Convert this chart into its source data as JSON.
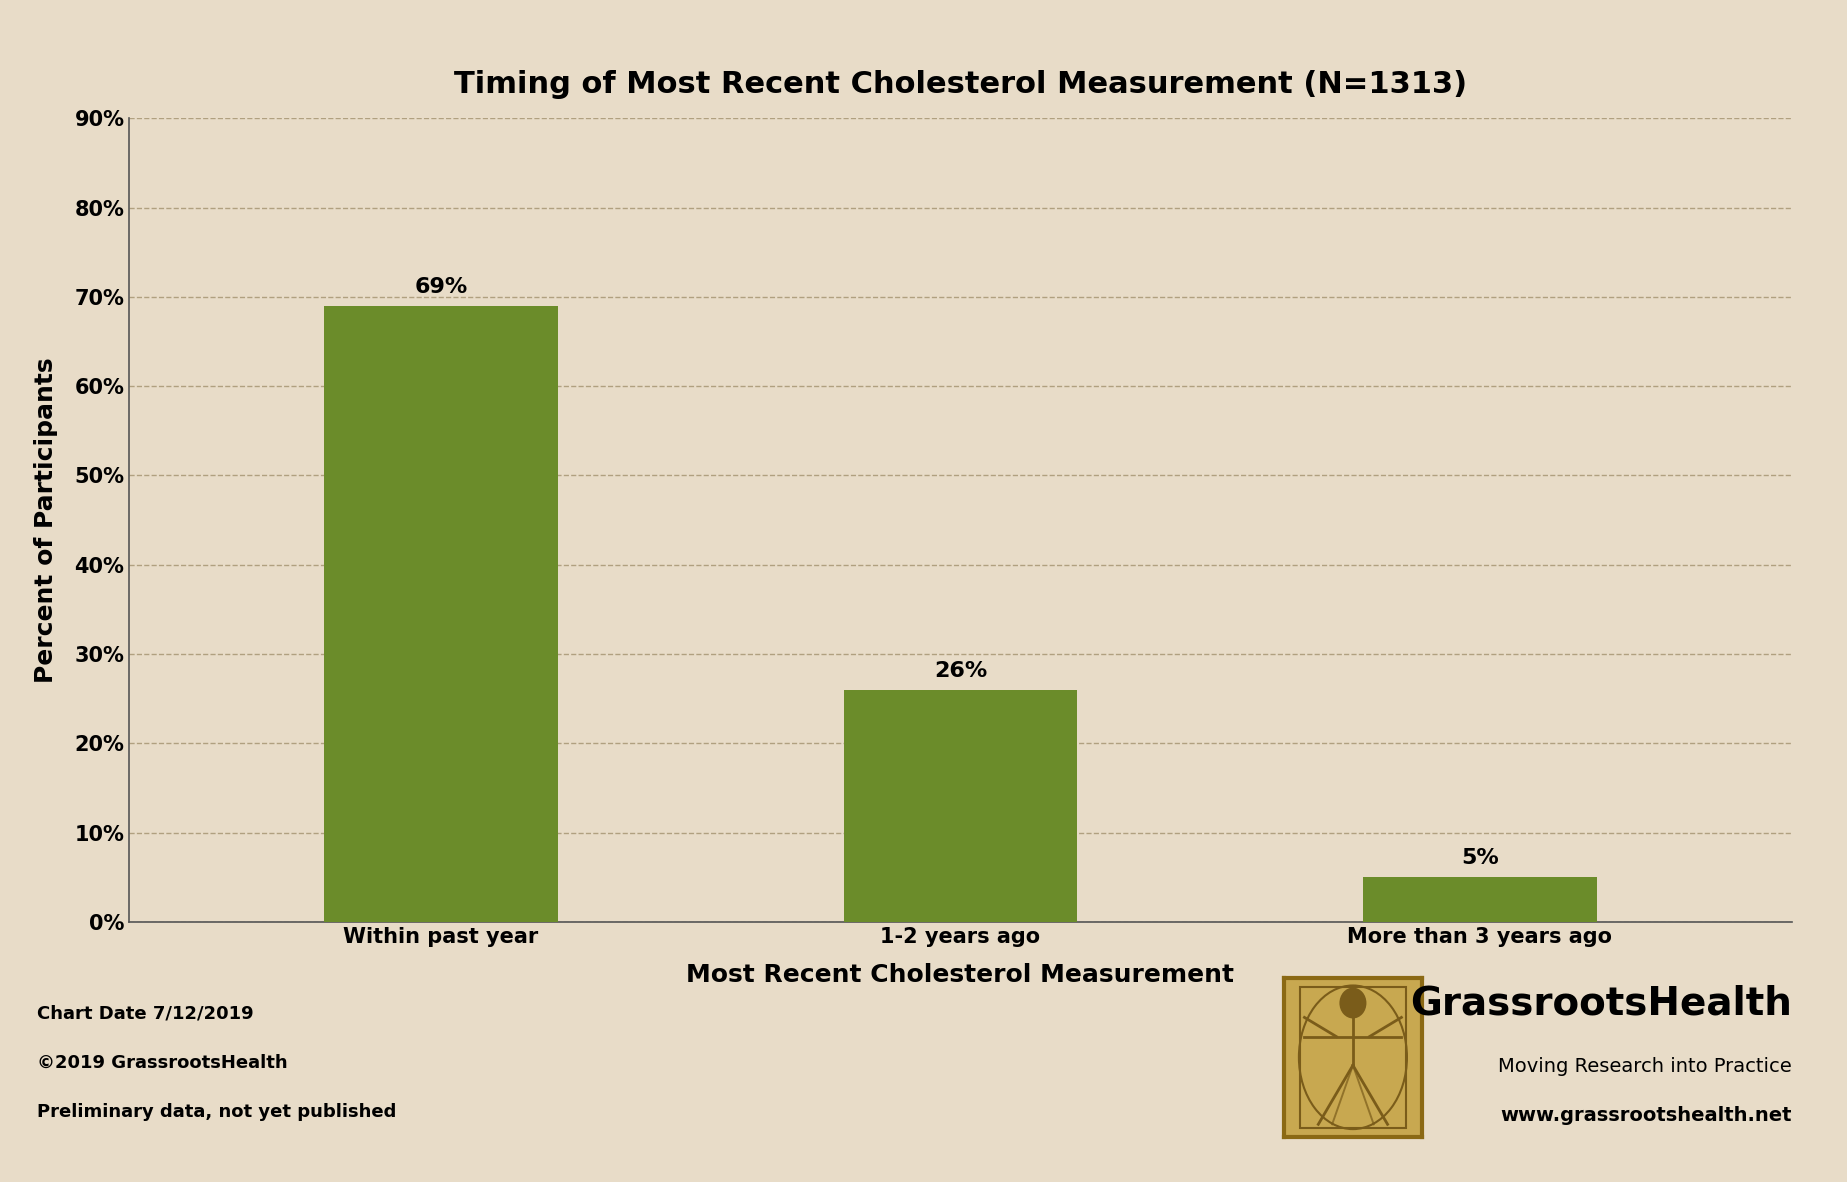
{
  "title": "Timing of Most Recent Cholesterol Measurement (N=1313)",
  "categories": [
    "Within past year",
    "1-2 years ago",
    "More than 3 years ago"
  ],
  "values": [
    69,
    26,
    5
  ],
  "bar_color": "#6b8c2a",
  "background_color": "#e8dcc8",
  "plot_bg_color": "#e8dcc8",
  "xlabel": "Most Recent Cholesterol Measurement",
  "ylabel": "Percent of Participants",
  "ylim": [
    0,
    90
  ],
  "yticks": [
    0,
    10,
    20,
    30,
    40,
    50,
    60,
    70,
    80,
    90
  ],
  "ytick_labels": [
    "0%",
    "10%",
    "20%",
    "30%",
    "40%",
    "50%",
    "60%",
    "70%",
    "80%",
    "90%"
  ],
  "title_fontsize": 22,
  "axis_label_fontsize": 18,
  "tick_fontsize": 15,
  "bar_label_fontsize": 16,
  "footer_line1": "Chart Date 7/12/2019",
  "footer_line2": "©2019 GrassrootsHealth",
  "footer_line3": "Preliminary data, not yet published",
  "footer_right_name": "GrassrootsHealth",
  "footer_right_sub": "Moving Research into Practice",
  "footer_right_url": "www.grassrootshealth.net",
  "grid_color": "#b0a080",
  "axis_color": "#555555",
  "text_color": "#000000",
  "logo_bg_color": "#c8a850",
  "logo_border_color": "#8b6914",
  "logo_figure_color": "#7a5c1a"
}
